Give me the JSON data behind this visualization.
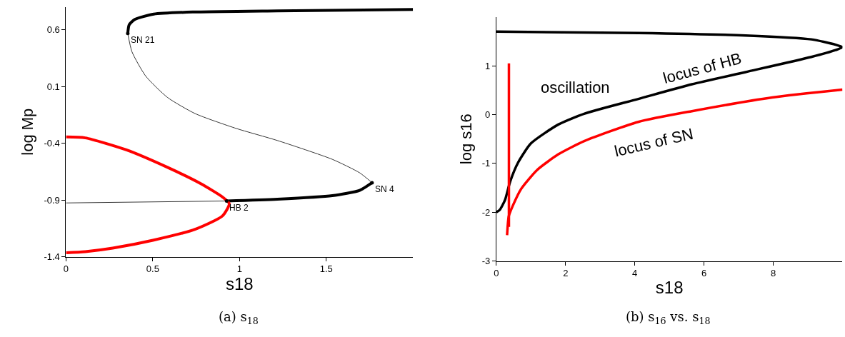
{
  "chart_data": [
    {
      "type": "line",
      "xlabel": "s18",
      "ylabel": "log Mp",
      "xlim": [
        0,
        2.0
      ],
      "ylim": [
        -1.4,
        0.8
      ],
      "xticks": [
        0,
        0.5,
        1,
        1.5
      ],
      "yticks": [
        -1.4,
        -0.9,
        -0.4,
        0.1,
        0.6
      ],
      "legend": false,
      "series": [
        {
          "color": "#000000",
          "x": [
            2.0,
            1.218,
            0.744,
            0.506,
            0.396,
            0.364,
            0.356
          ],
          "values": [
            0.778,
            0.766,
            0.756,
            0.737,
            0.69,
            0.643,
            0.567
          ]
        },
        {
          "color": "#000000",
          "x": [
            0.356,
            0.38,
            0.459,
            0.585,
            0.744,
            0.981,
            1.218,
            1.535,
            1.693,
            1.764
          ],
          "values": [
            0.567,
            0.406,
            0.192,
            0.003,
            -0.139,
            -0.27,
            -0.376,
            -0.542,
            -0.661,
            -0.748
          ]
        },
        {
          "color": "#000000",
          "x": [
            1.764,
            1.693,
            1.535,
            1.218,
            0.926
          ],
          "values": [
            -0.748,
            -0.815,
            -0.862,
            -0.893,
            -0.909
          ]
        },
        {
          "color": "#000000",
          "x": [
            0.926,
            0
          ],
          "values": [
            -0.909,
            -0.926
          ]
        },
        {
          "color": "#ff0000",
          "x": [
            0,
            0.111,
            0.348,
            0.585,
            0.775,
            0.902,
            0.941,
            0.902,
            0.744,
            0.506,
            0.269,
            0.111,
            0
          ],
          "values": [
            -0.345,
            -0.353,
            -0.459,
            -0.613,
            -0.755,
            -0.874,
            -0.933,
            -1.04,
            -1.158,
            -1.253,
            -1.324,
            -1.355,
            -1.365
          ]
        }
      ],
      "annotations": [
        {
          "text": "SN 21",
          "x": 0.356,
          "y": 0.567
        },
        {
          "text": "SN 4",
          "x": 1.764,
          "y": -0.748
        },
        {
          "text": "HB 2",
          "x": 0.926,
          "y": -0.909
        },
        "(a) s$_{18}$"
      ]
    },
    {
      "type": "line",
      "xlabel": "s18",
      "ylabel": "log s16",
      "xlim": [
        0,
        10.0
      ],
      "ylim": [
        -3,
        2
      ],
      "xticks": [
        0,
        2,
        4,
        6,
        8
      ],
      "yticks": [
        -3,
        -2,
        -1,
        0,
        1
      ],
      "legend": false,
      "series": [
        {
          "name": "locus of HB",
          "color": "#000000",
          "x": [
            0,
            4.1,
            7.2,
            9.1,
            9.8,
            10,
            9.8,
            9.1,
            7.2,
            5.65,
            4.1,
            2.55,
            1.8,
            1.0,
            0.63,
            0.4,
            0.25,
            0.1,
            0
          ],
          "values": [
            1.7,
            1.67,
            1.62,
            1.54,
            1.43,
            1.38,
            1.32,
            1.18,
            0.87,
            0.62,
            0.32,
            0.02,
            -0.2,
            -0.59,
            -0.98,
            -1.37,
            -1.75,
            -1.95,
            -2.0
          ]
        },
        {
          "name": "locus of SN",
          "color": "#ff0000",
          "x": [
            10,
            7.97,
            5.65,
            4.1,
            2.55,
            1.8,
            1.17,
            0.71,
            0.48,
            0.36,
            0.31
          ],
          "values": [
            0.51,
            0.35,
            0.07,
            -0.15,
            -0.54,
            -0.81,
            -1.14,
            -1.53,
            -1.86,
            -2.08,
            -2.47
          ]
        },
        {
          "color": "#ff0000",
          "x": [
            0.363,
            0.363
          ],
          "values": [
            -2.3,
            1.05
          ]
        }
      ],
      "annotations": [
        "oscillation",
        "(b) s$_{16}$ vs. s$_{18}$"
      ]
    }
  ]
}
